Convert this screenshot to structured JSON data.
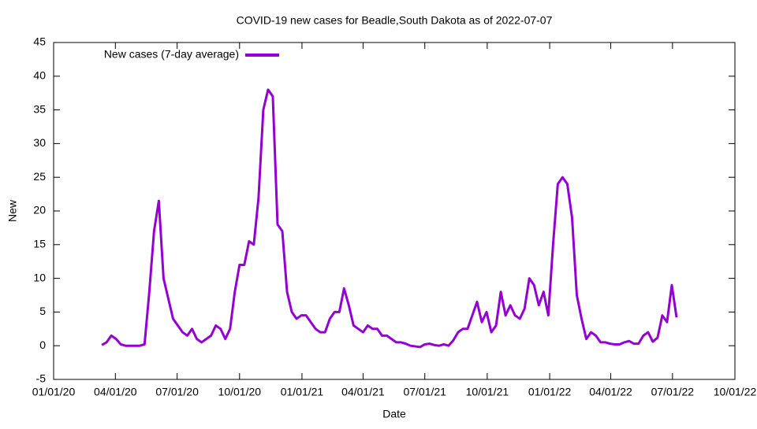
{
  "chart_data": {
    "type": "line",
    "title": "COVID-19 new cases for Beadle,South Dakota as of 2022-07-07",
    "x_label": "Date",
    "y_label": "New",
    "x": [
      "2020-03-12",
      "2020-03-19",
      "2020-03-26",
      "2020-04-02",
      "2020-04-09",
      "2020-04-16",
      "2020-04-23",
      "2020-04-30",
      "2020-05-07",
      "2020-05-14",
      "2020-05-21",
      "2020-05-28",
      "2020-06-04",
      "2020-06-11",
      "2020-06-18",
      "2020-06-25",
      "2020-07-02",
      "2020-07-09",
      "2020-07-16",
      "2020-07-23",
      "2020-07-30",
      "2020-08-06",
      "2020-08-13",
      "2020-08-20",
      "2020-08-27",
      "2020-09-03",
      "2020-09-10",
      "2020-09-17",
      "2020-09-24",
      "2020-10-01",
      "2020-10-08",
      "2020-10-15",
      "2020-10-22",
      "2020-10-29",
      "2020-11-05",
      "2020-11-12",
      "2020-11-19",
      "2020-11-26",
      "2020-12-03",
      "2020-12-10",
      "2020-12-17",
      "2020-12-24",
      "2020-12-31",
      "2021-01-07",
      "2021-01-14",
      "2021-01-21",
      "2021-01-28",
      "2021-02-04",
      "2021-02-11",
      "2021-02-18",
      "2021-02-25",
      "2021-03-04",
      "2021-03-11",
      "2021-03-18",
      "2021-03-25",
      "2021-04-01",
      "2021-04-08",
      "2021-04-15",
      "2021-04-22",
      "2021-04-29",
      "2021-05-06",
      "2021-05-13",
      "2021-05-20",
      "2021-05-27",
      "2021-06-03",
      "2021-06-10",
      "2021-06-17",
      "2021-06-24",
      "2021-07-01",
      "2021-07-08",
      "2021-07-15",
      "2021-07-22",
      "2021-07-29",
      "2021-08-05",
      "2021-08-12",
      "2021-08-19",
      "2021-08-26",
      "2021-09-02",
      "2021-09-09",
      "2021-09-16",
      "2021-09-23",
      "2021-09-30",
      "2021-10-07",
      "2021-10-14",
      "2021-10-21",
      "2021-10-28",
      "2021-11-04",
      "2021-11-11",
      "2021-11-18",
      "2021-11-25",
      "2021-12-02",
      "2021-12-09",
      "2021-12-16",
      "2021-12-23",
      "2021-12-30",
      "2022-01-06",
      "2022-01-13",
      "2022-01-20",
      "2022-01-27",
      "2022-02-03",
      "2022-02-10",
      "2022-02-17",
      "2022-02-24",
      "2022-03-03",
      "2022-03-10",
      "2022-03-17",
      "2022-03-24",
      "2022-03-31",
      "2022-04-07",
      "2022-04-14",
      "2022-04-21",
      "2022-04-28",
      "2022-05-05",
      "2022-05-12",
      "2022-05-19",
      "2022-05-26",
      "2022-06-02",
      "2022-06-09",
      "2022-06-16",
      "2022-06-23",
      "2022-06-30",
      "2022-07-07"
    ],
    "series": [
      {
        "name": "New cases (7-day average)",
        "color": "#9400d3",
        "values": [
          0.1,
          0.5,
          1.5,
          1,
          0.2,
          0,
          0,
          0,
          0,
          0.2,
          8,
          17,
          21.5,
          10,
          7,
          4,
          3,
          2,
          1.5,
          2.5,
          1,
          0.5,
          1,
          1.5,
          3,
          2.5,
          1,
          2.5,
          8,
          12,
          12,
          15.5,
          15,
          22,
          35,
          38,
          37,
          18,
          17,
          8,
          5,
          4,
          4.5,
          4.5,
          3.5,
          2.5,
          2,
          2,
          4,
          5,
          5,
          8.5,
          6,
          3,
          2.5,
          2,
          3,
          2.5,
          2.5,
          1.5,
          1.5,
          1,
          0.5,
          0.5,
          0.3,
          0,
          -0.1,
          -0.2,
          0.2,
          0.3,
          0.1,
          0,
          0.2,
          0,
          0.8,
          2,
          2.5,
          2.5,
          4.5,
          6.5,
          3.5,
          5,
          2,
          3,
          8,
          4.5,
          6,
          4.5,
          4,
          5.5,
          10,
          9,
          6,
          8,
          4.5,
          15,
          24,
          25,
          24,
          19,
          7.5,
          4,
          1,
          2,
          1.5,
          0.5,
          0.5,
          0.3,
          0.2,
          0.2,
          0.5,
          0.7,
          0.3,
          0.3,
          1.5,
          2,
          0.6,
          1.2,
          4.5,
          3.5,
          9,
          4.2
        ]
      }
    ],
    "xlim": [
      "2020-01-01",
      "2022-10-01"
    ],
    "xticks": [
      {
        "value": "2020-01-01",
        "label": "01/01/20"
      },
      {
        "value": "2020-04-01",
        "label": "04/01/20"
      },
      {
        "value": "2020-07-01",
        "label": "07/01/20"
      },
      {
        "value": "2020-10-01",
        "label": "10/01/20"
      },
      {
        "value": "2021-01-01",
        "label": "01/01/21"
      },
      {
        "value": "2021-04-01",
        "label": "04/01/21"
      },
      {
        "value": "2021-07-01",
        "label": "07/01/21"
      },
      {
        "value": "2021-10-01",
        "label": "10/01/21"
      },
      {
        "value": "2022-01-01",
        "label": "01/01/22"
      },
      {
        "value": "2022-04-01",
        "label": "04/01/22"
      },
      {
        "value": "2022-07-01",
        "label": "07/01/22"
      },
      {
        "value": "2022-10-01",
        "label": "10/01/22"
      }
    ],
    "ylim": [
      -5,
      45
    ],
    "yticks": [
      -5,
      0,
      5,
      10,
      15,
      20,
      25,
      30,
      35,
      40,
      45
    ],
    "grid": false,
    "legend": "top-left"
  }
}
